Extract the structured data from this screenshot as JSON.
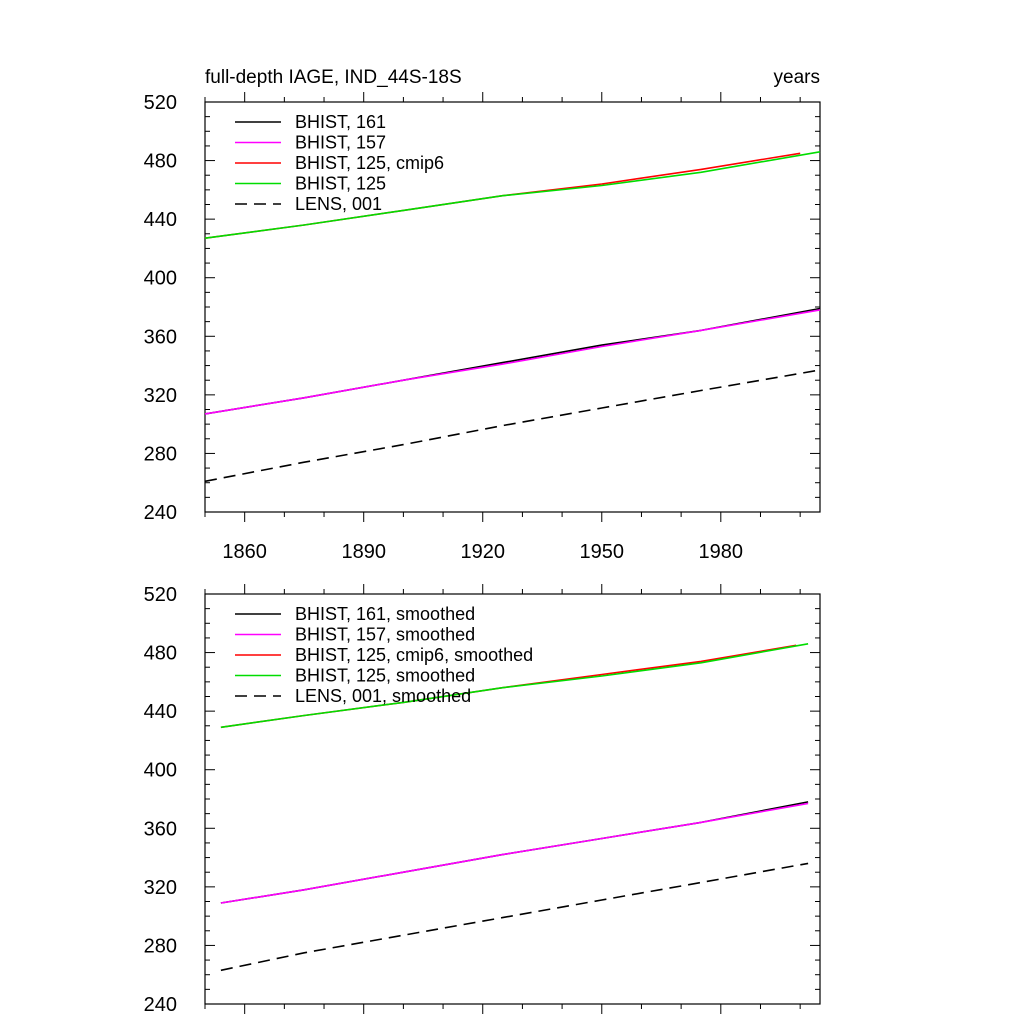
{
  "chart_data": [
    {
      "type": "line",
      "title": "full-depth IAGE, IND_44S-18S",
      "units": "years",
      "xlabel": "",
      "ylabel": "",
      "xlim": [
        1850,
        2005
      ],
      "ylim": [
        240,
        520
      ],
      "yticks": [
        240,
        280,
        320,
        360,
        400,
        440,
        480,
        520
      ],
      "xticks": [
        1860,
        1890,
        1920,
        1950,
        1980
      ],
      "grid": false,
      "legend_position": "top-left",
      "series": [
        {
          "name": "BHIST, 161",
          "color": "#000000",
          "dash": "solid",
          "x": [
            1850,
            1875,
            1900,
            1925,
            1950,
            1975,
            2005
          ],
          "y": [
            307,
            318,
            330,
            342,
            354,
            364,
            379
          ]
        },
        {
          "name": "BHIST, 157",
          "color": "#ff00ff",
          "dash": "solid",
          "x": [
            1850,
            1875,
            1900,
            1925,
            1950,
            1975,
            2005
          ],
          "y": [
            307,
            318,
            330,
            341,
            353,
            364,
            378
          ]
        },
        {
          "name": "BHIST, 125, cmip6",
          "color": "#ff0000",
          "dash": "solid",
          "x": [
            1850,
            1875,
            1900,
            1925,
            1950,
            1975,
            2000
          ],
          "y": [
            427,
            436,
            446,
            456,
            464,
            474,
            485
          ]
        },
        {
          "name": "BHIST, 125",
          "color": "#00dd00",
          "dash": "solid",
          "x": [
            1850,
            1875,
            1900,
            1925,
            1950,
            1975,
            2005
          ],
          "y": [
            427,
            436,
            446,
            456,
            463,
            472,
            486
          ]
        },
        {
          "name": "LENS, 001",
          "color": "#000000",
          "dash": "dashed",
          "x": [
            1850,
            1875,
            1900,
            1925,
            1950,
            1975,
            2005
          ],
          "y": [
            261,
            274,
            286,
            299,
            311,
            323,
            337
          ]
        }
      ]
    },
    {
      "type": "line",
      "title": "",
      "xlabel": "",
      "ylabel": "",
      "xlim": [
        1850,
        2005
      ],
      "ylim": [
        240,
        520
      ],
      "yticks": [
        240,
        280,
        320,
        360,
        400,
        440,
        480,
        520
      ],
      "grid": false,
      "legend_position": "top-left",
      "series": [
        {
          "name": "BHIST, 161, smoothed",
          "color": "#000000",
          "dash": "solid",
          "x": [
            1854,
            1875,
            1900,
            1925,
            1950,
            1975,
            2002
          ],
          "y": [
            309,
            318,
            330,
            342,
            353,
            364,
            378
          ]
        },
        {
          "name": "BHIST, 157, smoothed",
          "color": "#ff00ff",
          "dash": "solid",
          "x": [
            1854,
            1875,
            1900,
            1925,
            1950,
            1975,
            2002
          ],
          "y": [
            309,
            318,
            330,
            342,
            353,
            364,
            377
          ]
        },
        {
          "name": "BHIST, 125, cmip6, smoothed",
          "color": "#ff0000",
          "dash": "solid",
          "x": [
            1854,
            1875,
            1900,
            1925,
            1950,
            1975,
            1999
          ],
          "y": [
            429,
            437,
            446,
            456,
            465,
            474,
            485
          ]
        },
        {
          "name": "BHIST, 125, smoothed",
          "color": "#00dd00",
          "dash": "solid",
          "x": [
            1854,
            1875,
            1900,
            1925,
            1950,
            1975,
            2002
          ],
          "y": [
            429,
            437,
            446,
            456,
            464,
            473,
            486
          ]
        },
        {
          "name": "LENS, 001, smoothed",
          "color": "#000000",
          "dash": "dashed",
          "x": [
            1854,
            1875,
            1900,
            1925,
            1950,
            1975,
            2002
          ],
          "y": [
            263,
            275,
            287,
            299,
            311,
            323,
            336
          ]
        }
      ]
    }
  ]
}
